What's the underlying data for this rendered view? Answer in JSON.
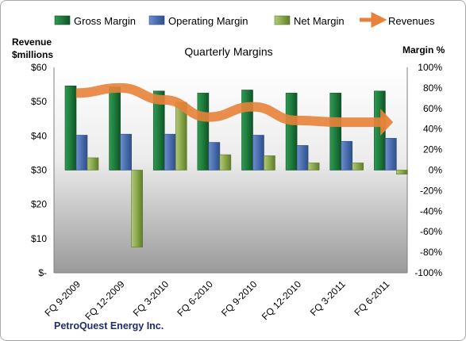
{
  "chart_data": {
    "type": "bar",
    "title": "Quarterly Margins",
    "categories": [
      "FQ 9-2009",
      "FQ 12-2009",
      "FQ 3-2010",
      "FQ 6-2010",
      "FQ 9-2010",
      "FQ 12-2010",
      "FQ 3-2011",
      "FQ 6-2011"
    ],
    "series": [
      {
        "name": "Gross Margin",
        "axis": "right",
        "values": [
          82,
          81,
          77,
          75,
          78,
          75,
          75,
          77
        ]
      },
      {
        "name": "Operating Margin",
        "axis": "right",
        "values": [
          34,
          35,
          35,
          27,
          34,
          24,
          28,
          31
        ]
      },
      {
        "name": "Net Margin",
        "axis": "right",
        "values": [
          12,
          -75,
          66,
          15,
          14,
          7,
          7,
          -4
        ]
      },
      {
        "name": "Revenues",
        "axis": "left",
        "type": "line",
        "values": [
          52.5,
          54,
          50.5,
          45.5,
          48.5,
          44.5,
          44,
          44
        ]
      }
    ],
    "left_axis": {
      "label_line1": "Revenue",
      "label_line2": "$millions",
      "ticks": [
        "$-",
        "$10",
        "$20",
        "$30",
        "$40",
        "$50",
        "$60"
      ],
      "ylim": [
        0,
        60
      ]
    },
    "right_axis": {
      "label": "Margin %",
      "ticks": [
        "-100%",
        "-80%",
        "-60%",
        "-40%",
        "-20%",
        "0%",
        "20%",
        "40%",
        "60%",
        "80%",
        "100%"
      ],
      "ylim": [
        -100,
        100
      ]
    },
    "legend_position": "top",
    "colors": {
      "gross": "#1e7b3c",
      "operating": "#4a6eae",
      "net": "#8aa84a",
      "revenue": "#e8823a"
    }
  },
  "footer": {
    "company": "PetroQuest Energy Inc."
  }
}
